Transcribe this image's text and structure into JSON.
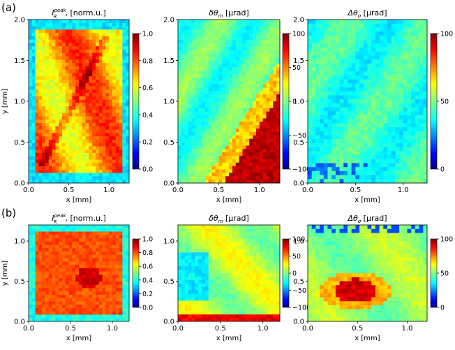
{
  "chart_data": [
    {
      "type": "heatmap",
      "panel_label": "(a)",
      "title_prefix": "I",
      "title_sub": "R",
      "title_sup": "peak",
      "title_suffix": ", [norm.u.]",
      "xlabel": "x [mm]",
      "ylabel": "y [mm]",
      "xlim": [
        0,
        1.25
      ],
      "ylim": [
        0,
        2.0
      ],
      "xticks": [
        "0.0",
        "0.5",
        "1.0"
      ],
      "yticks": [
        "0.0",
        "0.5",
        "1.0",
        "1.5",
        "2.0"
      ],
      "colorbar": {
        "range": [
          0,
          1
        ],
        "ticks": [
          "0.0",
          "0.2",
          "0.4",
          "0.6",
          "0.8",
          "1.0"
        ]
      },
      "description_value": "mostly 0.8 inside crystal, ~0.3 edges"
    },
    {
      "type": "heatmap",
      "panel_label": "",
      "title_prefix": "δθ",
      "title_sub": "m",
      "title_suffix": " [μrad]",
      "xlabel": "x [mm]",
      "ylabel": "",
      "xlim": [
        0,
        1.25
      ],
      "ylim": [
        0,
        2.0
      ],
      "xticks": [
        "0.0",
        "0.5",
        "1.0"
      ],
      "yticks": [
        "0.0",
        "0.5",
        "1.0",
        "1.5",
        "2.0"
      ],
      "colorbar": {
        "range": [
          -100,
          100
        ],
        "ticks": [
          "−100",
          "−50",
          "0",
          "50",
          "100"
        ]
      }
    },
    {
      "type": "heatmap",
      "panel_label": "",
      "title_prefix": "Δθ",
      "title_sub": "σ",
      "title_suffix": " [μrad]",
      "xlabel": "x [mm]",
      "ylabel": "",
      "xlim": [
        0,
        1.25
      ],
      "ylim": [
        0,
        2.0
      ],
      "xticks": [
        "0.0",
        "0.5",
        "1.0"
      ],
      "yticks": [
        "0.0",
        "0.5",
        "1.0",
        "1.5",
        "2.0"
      ],
      "colorbar": {
        "range": [
          0,
          100
        ],
        "ticks": [
          "0",
          "50",
          "100"
        ]
      }
    },
    {
      "type": "heatmap",
      "panel_label": "(b)",
      "title_prefix": "I",
      "title_sub": "R",
      "title_sup": "peak",
      "title_suffix": ", [norm.u.]",
      "xlabel": "x [mm]",
      "ylabel": "y [mm]",
      "xlim": [
        0,
        1.2
      ],
      "ylim": [
        0,
        1.2
      ],
      "xticks": [
        "0.0",
        "0.5",
        "1.0"
      ],
      "yticks": [
        "0.0",
        "0.5",
        "1.0"
      ],
      "colorbar": {
        "range": [
          0,
          1
        ],
        "ticks": [
          "0.0",
          "0.2",
          "0.4",
          "0.6",
          "0.8",
          "1.0"
        ]
      }
    },
    {
      "type": "heatmap",
      "panel_label": "",
      "title_prefix": "δθ",
      "title_sub": "m",
      "title_suffix": " [μrad]",
      "xlabel": "x [mm]",
      "ylabel": "",
      "xlim": [
        0,
        1.2
      ],
      "ylim": [
        0,
        1.2
      ],
      "xticks": [
        "0.0",
        "0.5",
        "1.0"
      ],
      "yticks": [
        "0.0",
        "0.5",
        "1.0"
      ],
      "colorbar": {
        "range": [
          -100,
          100
        ],
        "ticks": [
          "−100",
          "−50",
          "0",
          "50",
          "100"
        ]
      }
    },
    {
      "type": "heatmap",
      "panel_label": "",
      "title_prefix": "Δθ",
      "title_sub": "σ",
      "title_suffix": " [μrad]",
      "xlabel": "x [mm]",
      "ylabel": "",
      "xlim": [
        0,
        1.2
      ],
      "ylim": [
        0,
        1.2
      ],
      "xticks": [
        "0.0",
        "0.5",
        "1.0"
      ],
      "yticks": [
        "0.0",
        "0.5",
        "1.0"
      ],
      "colorbar": {
        "range": [
          0,
          100
        ],
        "ticks": [
          "0",
          "50",
          "100"
        ]
      }
    }
  ]
}
